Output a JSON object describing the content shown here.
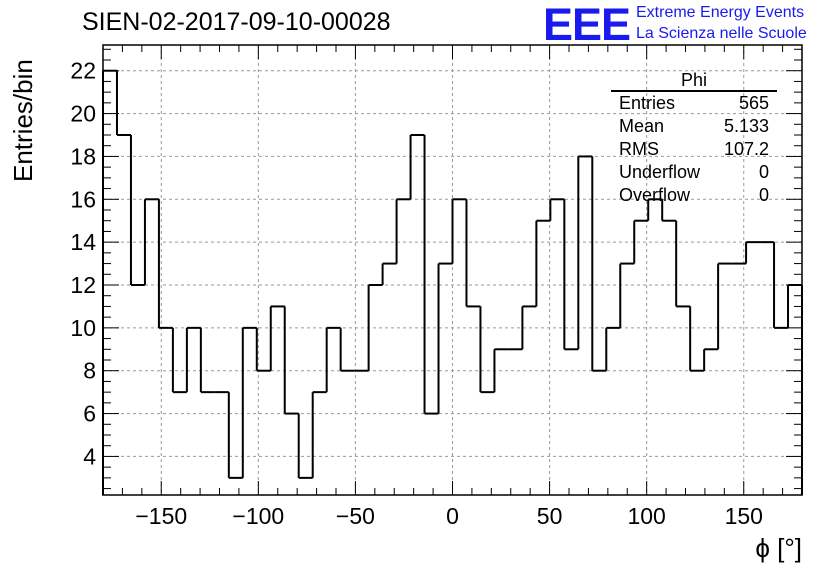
{
  "title": "SIEN-02-2017-09-10-00028",
  "logo": {
    "mark": "EEE",
    "line1": "Extreme Energy Events",
    "line2": "La Scienza nelle Scuole",
    "color": "#1a1aee"
  },
  "stats_box": {
    "name": "Phi",
    "rows": [
      {
        "key": "Entries",
        "value": "565"
      },
      {
        "key": "Mean",
        "value": "5.133"
      },
      {
        "key": "RMS",
        "value": "107.2"
      },
      {
        "key": "Underflow",
        "value": "0"
      },
      {
        "key": "Overflow",
        "value": "0"
      }
    ]
  },
  "chart_data": {
    "type": "bar",
    "style": "step-histogram",
    "xlabel": "ϕ [°]",
    "ylabel": "Entries/bin",
    "xlim": [
      -180,
      180
    ],
    "ylim": [
      2.2,
      23.2
    ],
    "bin_width": 7.2,
    "x_ticks": [
      -150,
      -100,
      -50,
      0,
      50,
      100,
      150
    ],
    "x_tick_labels": [
      "−150",
      "−100",
      "−50",
      "0",
      "50",
      "100",
      "150"
    ],
    "y_ticks": [
      4,
      6,
      8,
      10,
      12,
      14,
      16,
      18,
      20,
      22
    ],
    "grid": true,
    "line_color": "#000000",
    "values": [
      22,
      19,
      12,
      16,
      10,
      7,
      10,
      7,
      7,
      3,
      10,
      8,
      11,
      6,
      3,
      7,
      10,
      8,
      8,
      12,
      13,
      16,
      19,
      6,
      13,
      16,
      11,
      7,
      9,
      9,
      11,
      15,
      16,
      9,
      18,
      8,
      10,
      13,
      15,
      16,
      15,
      11,
      8,
      9,
      13,
      13,
      14,
      14,
      10,
      12
    ]
  }
}
